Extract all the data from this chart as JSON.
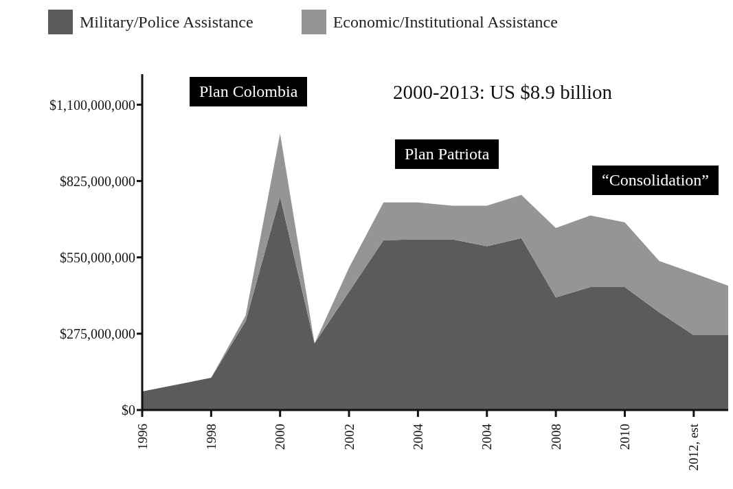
{
  "chart_data": {
    "type": "area",
    "stacked": true,
    "categories": [
      "1996",
      null,
      "1998",
      null,
      "2000",
      null,
      "2002",
      null,
      "2004",
      null,
      "2004",
      null,
      "2008",
      null,
      "2010",
      null,
      "2012, est",
      null
    ],
    "series": [
      {
        "name": "Military/Police Assistance",
        "color": "#5a5b5d",
        "values": [
          67000000,
          null,
          116000000,
          320000000,
          768000000,
          240000000,
          426000000,
          612000000,
          615000000,
          615000000,
          590000000,
          619000000,
          406000000,
          443000000,
          443000000,
          352000000,
          270000000,
          270000000
        ]
      },
      {
        "name": "Economic/Institutional Assistance",
        "color": "#949597",
        "values": [
          0,
          null,
          0,
          20000000,
          228000000,
          0,
          87000000,
          136000000,
          133000000,
          121000000,
          146000000,
          156000000,
          250000000,
          258000000,
          233000000,
          185000000,
          223000000,
          178000000
        ]
      }
    ],
    "ylim": [
      0,
      1210000000
    ],
    "yticks": [
      {
        "value": 0,
        "label": "$0"
      },
      {
        "value": 275000000,
        "label": "$275,000,000"
      },
      {
        "value": 550000000,
        "label": "$550,000,000"
      },
      {
        "value": 825000000,
        "label": "$825,000,000"
      },
      {
        "value": 1100000000,
        "label": "$1,100,000,000"
      }
    ],
    "grid": false,
    "legend": "top left",
    "annotations": [
      "Plan Colombia",
      "2000-2013: US $8.9 billion",
      "Plan Patriota",
      "“Consolidation”"
    ]
  }
}
